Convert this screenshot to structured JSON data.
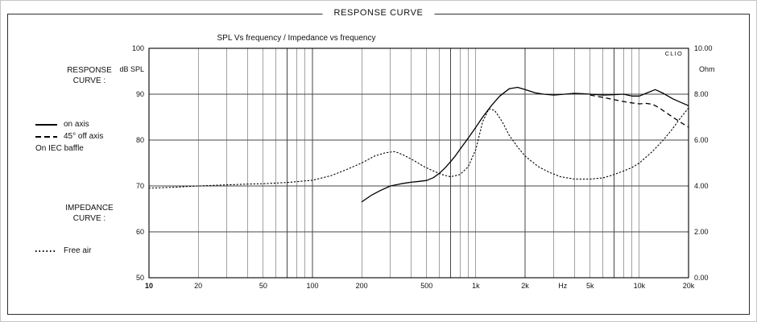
{
  "panel": {
    "title": "RESPONSE CURVE"
  },
  "legend": {
    "response_heading": "RESPONSE\nCURVE :",
    "items": [
      {
        "label": "on axis",
        "style": "solid"
      },
      {
        "label": "45° off axis",
        "style": "dashed"
      }
    ],
    "baffle_note": "On IEC baffle",
    "impedance_heading": "IMPEDANCE\nCURVE :",
    "impedance_items": [
      {
        "label": "Free air",
        "style": "dotted"
      }
    ]
  },
  "chart_data": {
    "type": "line",
    "title": "SPL Vs frequency / Impedance vs frequency",
    "watermark": "CLIO",
    "grid": true,
    "legend_position": "outside-left",
    "x_axis": {
      "scale": "log",
      "range": [
        10,
        20000
      ],
      "unit": "Hz",
      "ticks": [
        {
          "f": 10,
          "label": "10",
          "bold": true
        },
        {
          "f": 20,
          "label": "20"
        },
        {
          "f": 50,
          "label": "50"
        },
        {
          "f": 100,
          "label": "100"
        },
        {
          "f": 200,
          "label": "200"
        },
        {
          "f": 500,
          "label": "500"
        },
        {
          "f": 1000,
          "label": "1k"
        },
        {
          "f": 2000,
          "label": "2k"
        },
        {
          "f": 3400,
          "label": "Hz",
          "unit": true
        },
        {
          "f": 5000,
          "label": "5k"
        },
        {
          "f": 10000,
          "label": "10k"
        },
        {
          "f": 20000,
          "label": "20k"
        }
      ]
    },
    "y_left": {
      "label": "dB SPL",
      "range": [
        50,
        100
      ],
      "ticks": [
        {
          "v": 100,
          "label": "100"
        },
        {
          "v": 90,
          "label": "90"
        },
        {
          "v": 80,
          "label": "80"
        },
        {
          "v": 70,
          "label": "70"
        },
        {
          "v": 60,
          "label": "60"
        },
        {
          "v": 50,
          "label": "50"
        }
      ]
    },
    "y_right": {
      "label": "Ohm",
      "range": [
        0,
        10
      ],
      "ticks": [
        {
          "v": 10,
          "label": "10.00"
        },
        {
          "v": 8,
          "label": "8.00"
        },
        {
          "v": 6,
          "label": "6.00"
        },
        {
          "v": 4,
          "label": "4.00"
        },
        {
          "v": 2,
          "label": "2.00"
        },
        {
          "v": 0,
          "label": "0.00"
        }
      ]
    },
    "series": [
      {
        "name": "on axis",
        "axis": "left",
        "style": "solid",
        "unit": "dB",
        "points": [
          [
            200,
            66.5
          ],
          [
            230,
            68
          ],
          [
            260,
            69
          ],
          [
            300,
            70
          ],
          [
            350,
            70.5
          ],
          [
            400,
            70.8
          ],
          [
            450,
            71
          ],
          [
            500,
            71.2
          ],
          [
            550,
            71.8
          ],
          [
            600,
            72.8
          ],
          [
            650,
            74
          ],
          [
            700,
            75.3
          ],
          [
            750,
            76.6
          ],
          [
            800,
            78
          ],
          [
            900,
            80.5
          ],
          [
            1000,
            82.8
          ],
          [
            1100,
            85
          ],
          [
            1250,
            87.6
          ],
          [
            1400,
            89.6
          ],
          [
            1600,
            91.2
          ],
          [
            1800,
            91.5
          ],
          [
            2000,
            91
          ],
          [
            2300,
            90.3
          ],
          [
            2600,
            90
          ],
          [
            3000,
            89.8
          ],
          [
            3500,
            90
          ],
          [
            4000,
            90.2
          ],
          [
            4500,
            90.1
          ],
          [
            5000,
            90
          ],
          [
            6000,
            89.8
          ],
          [
            7000,
            89.9
          ],
          [
            8000,
            90
          ],
          [
            9000,
            89.6
          ],
          [
            10000,
            89.6
          ],
          [
            11000,
            90.2
          ],
          [
            12500,
            91
          ],
          [
            14000,
            90.2
          ],
          [
            16000,
            89
          ],
          [
            18000,
            88.2
          ],
          [
            20000,
            87.5
          ]
        ]
      },
      {
        "name": "45° off axis",
        "axis": "left",
        "style": "dashed",
        "unit": "dB",
        "points": [
          [
            5000,
            89.8
          ],
          [
            6000,
            89.3
          ],
          [
            7000,
            88.8
          ],
          [
            8000,
            88.4
          ],
          [
            9000,
            88.1
          ],
          [
            10000,
            87.9
          ],
          [
            11000,
            88
          ],
          [
            12000,
            87.8
          ],
          [
            13000,
            87.2
          ],
          [
            14000,
            86.4
          ],
          [
            16000,
            85
          ],
          [
            18000,
            83.8
          ],
          [
            20000,
            82.8
          ]
        ]
      },
      {
        "name": "Free air impedance",
        "axis": "right",
        "style": "dotted",
        "unit": "Ohm",
        "points": [
          [
            10,
            3.9
          ],
          [
            15,
            3.95
          ],
          [
            20,
            4.0
          ],
          [
            30,
            4.05
          ],
          [
            40,
            4.08
          ],
          [
            50,
            4.1
          ],
          [
            70,
            4.15
          ],
          [
            100,
            4.25
          ],
          [
            130,
            4.45
          ],
          [
            160,
            4.7
          ],
          [
            200,
            5.0
          ],
          [
            240,
            5.3
          ],
          [
            280,
            5.45
          ],
          [
            320,
            5.5
          ],
          [
            360,
            5.35
          ],
          [
            420,
            5.1
          ],
          [
            480,
            4.85
          ],
          [
            550,
            4.65
          ],
          [
            620,
            4.5
          ],
          [
            700,
            4.4
          ],
          [
            800,
            4.5
          ],
          [
            900,
            4.85
          ],
          [
            1000,
            5.6
          ],
          [
            1100,
            6.8
          ],
          [
            1200,
            7.35
          ],
          [
            1300,
            7.3
          ],
          [
            1450,
            6.8
          ],
          [
            1600,
            6.2
          ],
          [
            1800,
            5.7
          ],
          [
            2000,
            5.3
          ],
          [
            2400,
            4.85
          ],
          [
            2800,
            4.6
          ],
          [
            3300,
            4.4
          ],
          [
            4000,
            4.3
          ],
          [
            5000,
            4.3
          ],
          [
            6000,
            4.35
          ],
          [
            7000,
            4.5
          ],
          [
            8000,
            4.65
          ],
          [
            9000,
            4.8
          ],
          [
            10000,
            5.0
          ],
          [
            12000,
            5.5
          ],
          [
            14000,
            6.0
          ],
          [
            16000,
            6.5
          ],
          [
            18000,
            7.0
          ],
          [
            20000,
            7.4
          ]
        ]
      }
    ]
  }
}
